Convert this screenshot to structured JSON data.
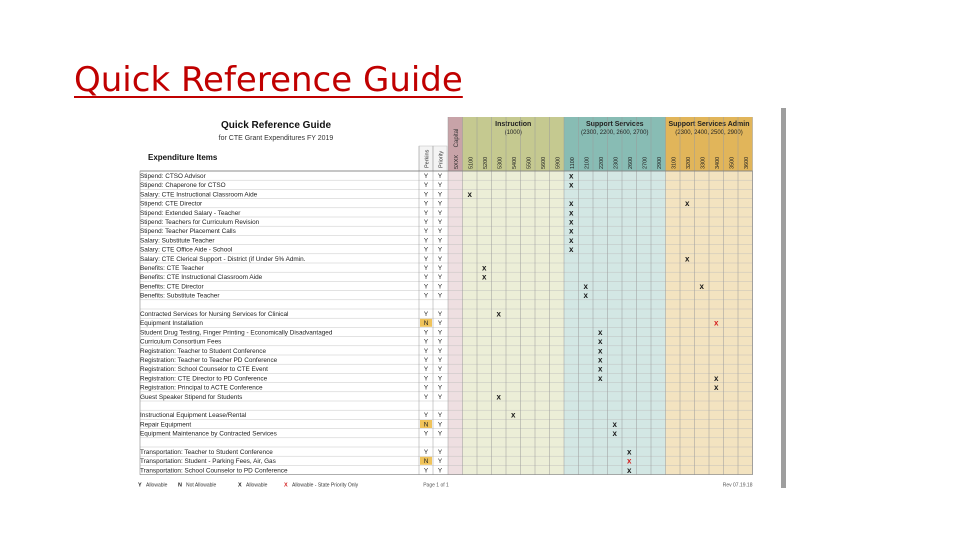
{
  "slide": {
    "title": "Quick Reference Guide"
  },
  "guide": {
    "title": "Quick Reference Guide",
    "subtitle": "for CTE Grant Expenditures FY 2019",
    "column_header": "Expenditure Items",
    "flag_headers": [
      "Perkins",
      "Priority"
    ],
    "capital_label": "Capital",
    "code_columns": [
      "5XXX",
      "5100",
      "5200",
      "5300",
      "5400",
      "5500",
      "5600",
      "5900",
      "1100",
      "2100",
      "2200",
      "2300",
      "2600",
      "2700",
      "2900",
      "3100",
      "3200",
      "3300",
      "3400",
      "3500",
      "3600"
    ],
    "groups": [
      {
        "title": "Instruction",
        "codes": "(1000)",
        "color": "#c5c990",
        "light": "#eceed7"
      },
      {
        "title": "Support Services",
        "codes": "(2300, 2200, 2600, 2700)",
        "color": "#88bcb4",
        "light": "#d3e7e4"
      },
      {
        "title": "Support Services Admin",
        "codes": "(2300, 2400, 2500, 2900)",
        "color": "#e1b55a",
        "light": "#f3e3c0"
      }
    ],
    "capital_colors": {
      "color": "#c8a3a8",
      "light": "#eedfe1"
    },
    "rows": [
      {
        "label": "Stipend: CTSO Advisor",
        "p": "Y",
        "r": "Y",
        "marks": [
          8
        ]
      },
      {
        "label": "Stipend: Chaperone for CTSO",
        "p": "Y",
        "r": "Y",
        "marks": [
          8
        ]
      },
      {
        "label": "Salary: CTE Instructional Classroom Aide",
        "p": "Y",
        "r": "Y",
        "marks": [
          1
        ]
      },
      {
        "label": "Stipend: CTE Director",
        "p": "Y",
        "r": "Y",
        "marks": [
          8,
          16
        ]
      },
      {
        "label": "Stipend: Extended Salary - Teacher",
        "p": "Y",
        "r": "Y",
        "marks": [
          8
        ]
      },
      {
        "label": "Stipend: Teachers for Curriculum Revision",
        "p": "Y",
        "r": "Y",
        "marks": [
          8
        ]
      },
      {
        "label": "Stipend: Teacher Placement Calls",
        "p": "Y",
        "r": "Y",
        "marks": [
          8
        ]
      },
      {
        "label": "Salary: Substitute Teacher",
        "p": "Y",
        "r": "Y",
        "marks": [
          8
        ]
      },
      {
        "label": "Salary: CTE Office Aide - School",
        "p": "Y",
        "r": "Y",
        "marks": [
          8
        ]
      },
      {
        "label": "Salary: CTE Clerical Support - District (if Under 5% Admin.",
        "p": "Y",
        "r": "Y",
        "marks": [
          16
        ]
      },
      {
        "label": "Benefits: CTE Teacher",
        "p": "Y",
        "r": "Y",
        "marks": [
          2
        ]
      },
      {
        "label": "Benefits: CTE Instructional Classroom Aide",
        "p": "Y",
        "r": "Y",
        "marks": [
          2
        ]
      },
      {
        "label": "Benefits: CTE Director",
        "p": "Y",
        "r": "Y",
        "marks": [
          9,
          17
        ]
      },
      {
        "label": "Benefits: Substitute Teacher",
        "p": "Y",
        "r": "Y",
        "marks": [
          9
        ]
      },
      {
        "label": "",
        "p": "",
        "r": "",
        "marks": []
      },
      {
        "label": "Contracted Services for Nursing Services for Clinical",
        "p": "Y",
        "r": "Y",
        "marks": [
          3
        ]
      },
      {
        "label": "Equipment Installation",
        "p": "N",
        "r": "Y",
        "marks": [],
        "red": [
          18
        ]
      },
      {
        "label": "Student Drug Testing, Finger Printing - Economically Disadvantaged",
        "p": "Y",
        "r": "Y",
        "marks": [
          10
        ]
      },
      {
        "label": "Curriculum Consortium Fees",
        "p": "Y",
        "r": "Y",
        "marks": [
          10
        ]
      },
      {
        "label": "Registration: Teacher to Student Conference",
        "p": "Y",
        "r": "Y",
        "marks": [
          10
        ]
      },
      {
        "label": "Registration: Teacher to Teacher PD Conference",
        "p": "Y",
        "r": "Y",
        "marks": [
          10
        ]
      },
      {
        "label": "Registration: School Counselor to CTE Event",
        "p": "Y",
        "r": "Y",
        "marks": [
          10
        ]
      },
      {
        "label": "Registration: CTE Director to PD Conference",
        "p": "Y",
        "r": "Y",
        "marks": [
          10,
          18
        ]
      },
      {
        "label": "Registration: Principal to ACTE Conference",
        "p": "Y",
        "r": "Y",
        "marks": [
          18
        ]
      },
      {
        "label": "Guest Speaker Stipend for Students",
        "p": "Y",
        "r": "Y",
        "marks": [
          3
        ]
      },
      {
        "label": "",
        "p": "",
        "r": "",
        "marks": []
      },
      {
        "label": "Instructional Equipment Lease/Rental",
        "p": "Y",
        "r": "Y",
        "marks": [
          4
        ]
      },
      {
        "label": "Repair Equipment",
        "p": "N",
        "r": "Y",
        "marks": [
          11
        ]
      },
      {
        "label": "Equipment Maintenance by Contracted Services",
        "p": "Y",
        "r": "Y",
        "marks": [
          11
        ]
      },
      {
        "label": "",
        "p": "",
        "r": "",
        "marks": []
      },
      {
        "label": "Transportation: Teacher to Student Conference",
        "p": "Y",
        "r": "Y",
        "marks": [
          12
        ]
      },
      {
        "label": "Transportation: Student - Parking Fees, Air, Gas",
        "p": "N",
        "r": "Y",
        "marks": [],
        "red": [
          12
        ]
      },
      {
        "label": "Transportation: School Counselor to PD Conference",
        "p": "Y",
        "r": "Y",
        "marks": [
          12
        ]
      }
    ],
    "legend": [
      {
        "sym": "Y",
        "text": "Allowable"
      },
      {
        "sym": "N",
        "text": "Not Allowable"
      },
      {
        "sym": "X",
        "text": "Allowable"
      },
      {
        "sym": "X",
        "text": "Allowable - State Priority Only",
        "red": true
      }
    ],
    "page_label": "Page 1 of 1",
    "revision": "Rev 07.19.18"
  }
}
